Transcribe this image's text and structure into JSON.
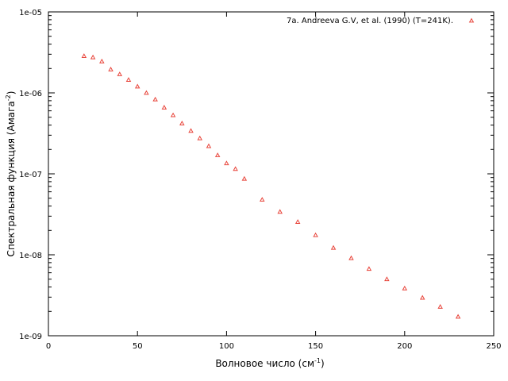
{
  "chart_data": {
    "type": "scatter",
    "xlabel": "Волновое число (см",
    "xlabel_sup": "-1",
    "xlabel_tail": ")",
    "ylabel": "Спектральная функция (Амага",
    "ylabel_sup": "-2",
    "ylabel_tail": ")",
    "xlim": [
      0,
      250
    ],
    "ylim": [
      1e-09,
      1e-05
    ],
    "yscale": "log",
    "grid": false,
    "legend_position": "top-right",
    "x_ticks": [
      0,
      50,
      100,
      150,
      200,
      250
    ],
    "x_tick_labels": [
      "0",
      "50",
      "100",
      "150",
      "200",
      "250"
    ],
    "y_ticks": [
      1e-09,
      1e-08,
      1e-07,
      1e-06,
      1e-05
    ],
    "y_tick_labels": [
      "1e-09",
      "1e-08",
      "1e-07",
      "1e-06",
      "1e-05"
    ],
    "series": [
      {
        "name": "7a. Andreeva G.V, et al. (1990) (T=241K).",
        "color": "#e8443a",
        "marker": "triangle",
        "points": [
          {
            "x": 20,
            "y": 2.85e-06
          },
          {
            "x": 25,
            "y": 2.75e-06
          },
          {
            "x": 30,
            "y": 2.45e-06
          },
          {
            "x": 35,
            "y": 1.95e-06
          },
          {
            "x": 40,
            "y": 1.7e-06
          },
          {
            "x": 45,
            "y": 1.45e-06
          },
          {
            "x": 50,
            "y": 1.2e-06
          },
          {
            "x": 55,
            "y": 1e-06
          },
          {
            "x": 60,
            "y": 8.3e-07
          },
          {
            "x": 65,
            "y": 6.6e-07
          },
          {
            "x": 70,
            "y": 5.3e-07
          },
          {
            "x": 75,
            "y": 4.2e-07
          },
          {
            "x": 80,
            "y": 3.4e-07
          },
          {
            "x": 85,
            "y": 2.75e-07
          },
          {
            "x": 90,
            "y": 2.2e-07
          },
          {
            "x": 95,
            "y": 1.7e-07
          },
          {
            "x": 100,
            "y": 1.35e-07
          },
          {
            "x": 105,
            "y": 1.15e-07
          },
          {
            "x": 110,
            "y": 8.7e-08
          },
          {
            "x": 120,
            "y": 4.8e-08
          },
          {
            "x": 130,
            "y": 3.4e-08
          },
          {
            "x": 140,
            "y": 2.55e-08
          },
          {
            "x": 150,
            "y": 1.75e-08
          },
          {
            "x": 160,
            "y": 1.22e-08
          },
          {
            "x": 170,
            "y": 9.1e-09
          },
          {
            "x": 180,
            "y": 6.7e-09
          },
          {
            "x": 190,
            "y": 5e-09
          },
          {
            "x": 200,
            "y": 3.85e-09
          },
          {
            "x": 210,
            "y": 2.95e-09
          },
          {
            "x": 220,
            "y": 2.28e-09
          },
          {
            "x": 230,
            "y": 1.72e-09
          }
        ]
      }
    ]
  }
}
